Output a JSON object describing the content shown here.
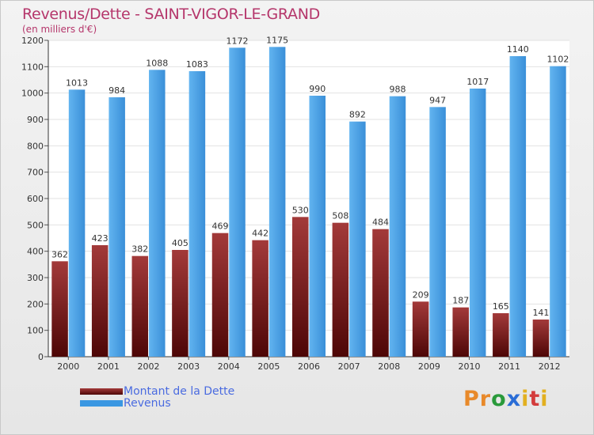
{
  "chart_data": {
    "type": "bar",
    "title": "Revenus/Dette - SAINT-VIGOR-LE-GRAND",
    "subtitle": "(en milliers d'€)",
    "categories": [
      "2000",
      "2001",
      "2002",
      "2003",
      "2004",
      "2005",
      "2006",
      "2007",
      "2008",
      "2009",
      "2010",
      "2011",
      "2012"
    ],
    "series": [
      {
        "name": "Montant de la Dette",
        "color": "#7a1414",
        "values": [
          362,
          423,
          382,
          405,
          469,
          442,
          530,
          508,
          484,
          209,
          187,
          165,
          141
        ]
      },
      {
        "name": "Revenus",
        "color": "#3a97e2",
        "values": [
          1013,
          984,
          1088,
          1083,
          1172,
          1175,
          990,
          892,
          988,
          947,
          1017,
          1140,
          1102
        ]
      }
    ],
    "ylim": [
      0,
      1200
    ],
    "yticks": [
      0,
      100,
      200,
      300,
      400,
      500,
      600,
      700,
      800,
      900,
      1000,
      1100,
      1200
    ],
    "grid": true,
    "legend": "bottom-left",
    "xlabel": "",
    "ylabel": ""
  },
  "branding": {
    "logo_letters": [
      "P",
      "r",
      "o",
      "x",
      "i",
      "t",
      "i"
    ],
    "logo_colors": [
      "#e8892a",
      "#e8892a",
      "#2a9a3b",
      "#2a6dd6",
      "#e2b020",
      "#d33c3c",
      "#e2b020"
    ]
  }
}
